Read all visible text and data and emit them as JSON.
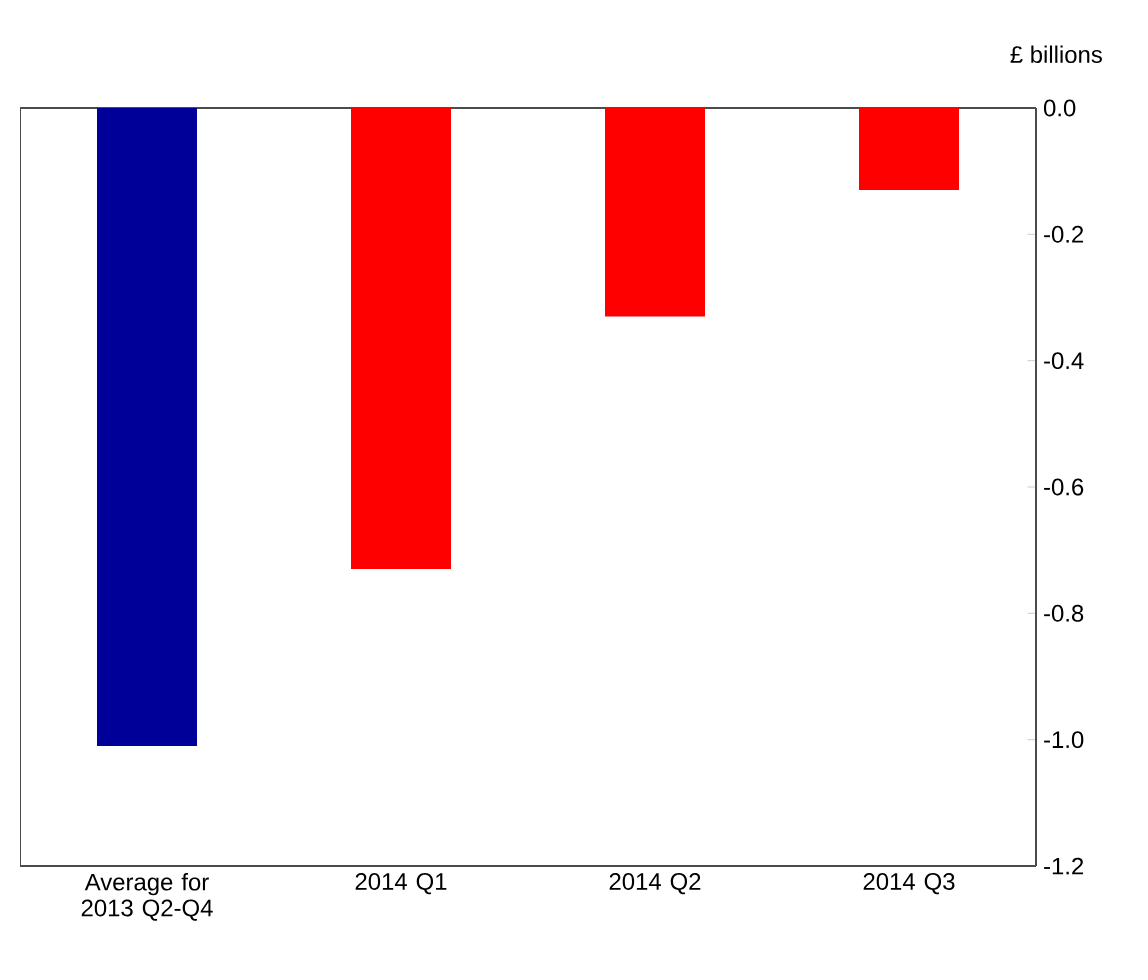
{
  "chart_data": {
    "type": "bar",
    "ylabel": "£ billions",
    "categories": [
      "Average for 2013 Q2-Q4",
      "2014 Q1",
      "2014 Q2",
      "2014 Q3"
    ],
    "values": [
      -1.01,
      -0.73,
      -0.33,
      -0.13
    ],
    "colors": [
      "#000099",
      "#ff0000",
      "#ff0000",
      "#ff0000"
    ],
    "ylim": [
      -1.2,
      0.0
    ],
    "yticks": [
      {
        "value": 0.0,
        "label": "0.0"
      },
      {
        "value": -0.2,
        "label": "-0.2"
      },
      {
        "value": -0.4,
        "label": "-0.4"
      },
      {
        "value": -0.6,
        "label": "-0.6"
      },
      {
        "value": -0.8,
        "label": "-0.8"
      },
      {
        "value": -1.0,
        "label": "-1.0"
      },
      {
        "value": -1.2,
        "label": "-1.2"
      }
    ]
  }
}
